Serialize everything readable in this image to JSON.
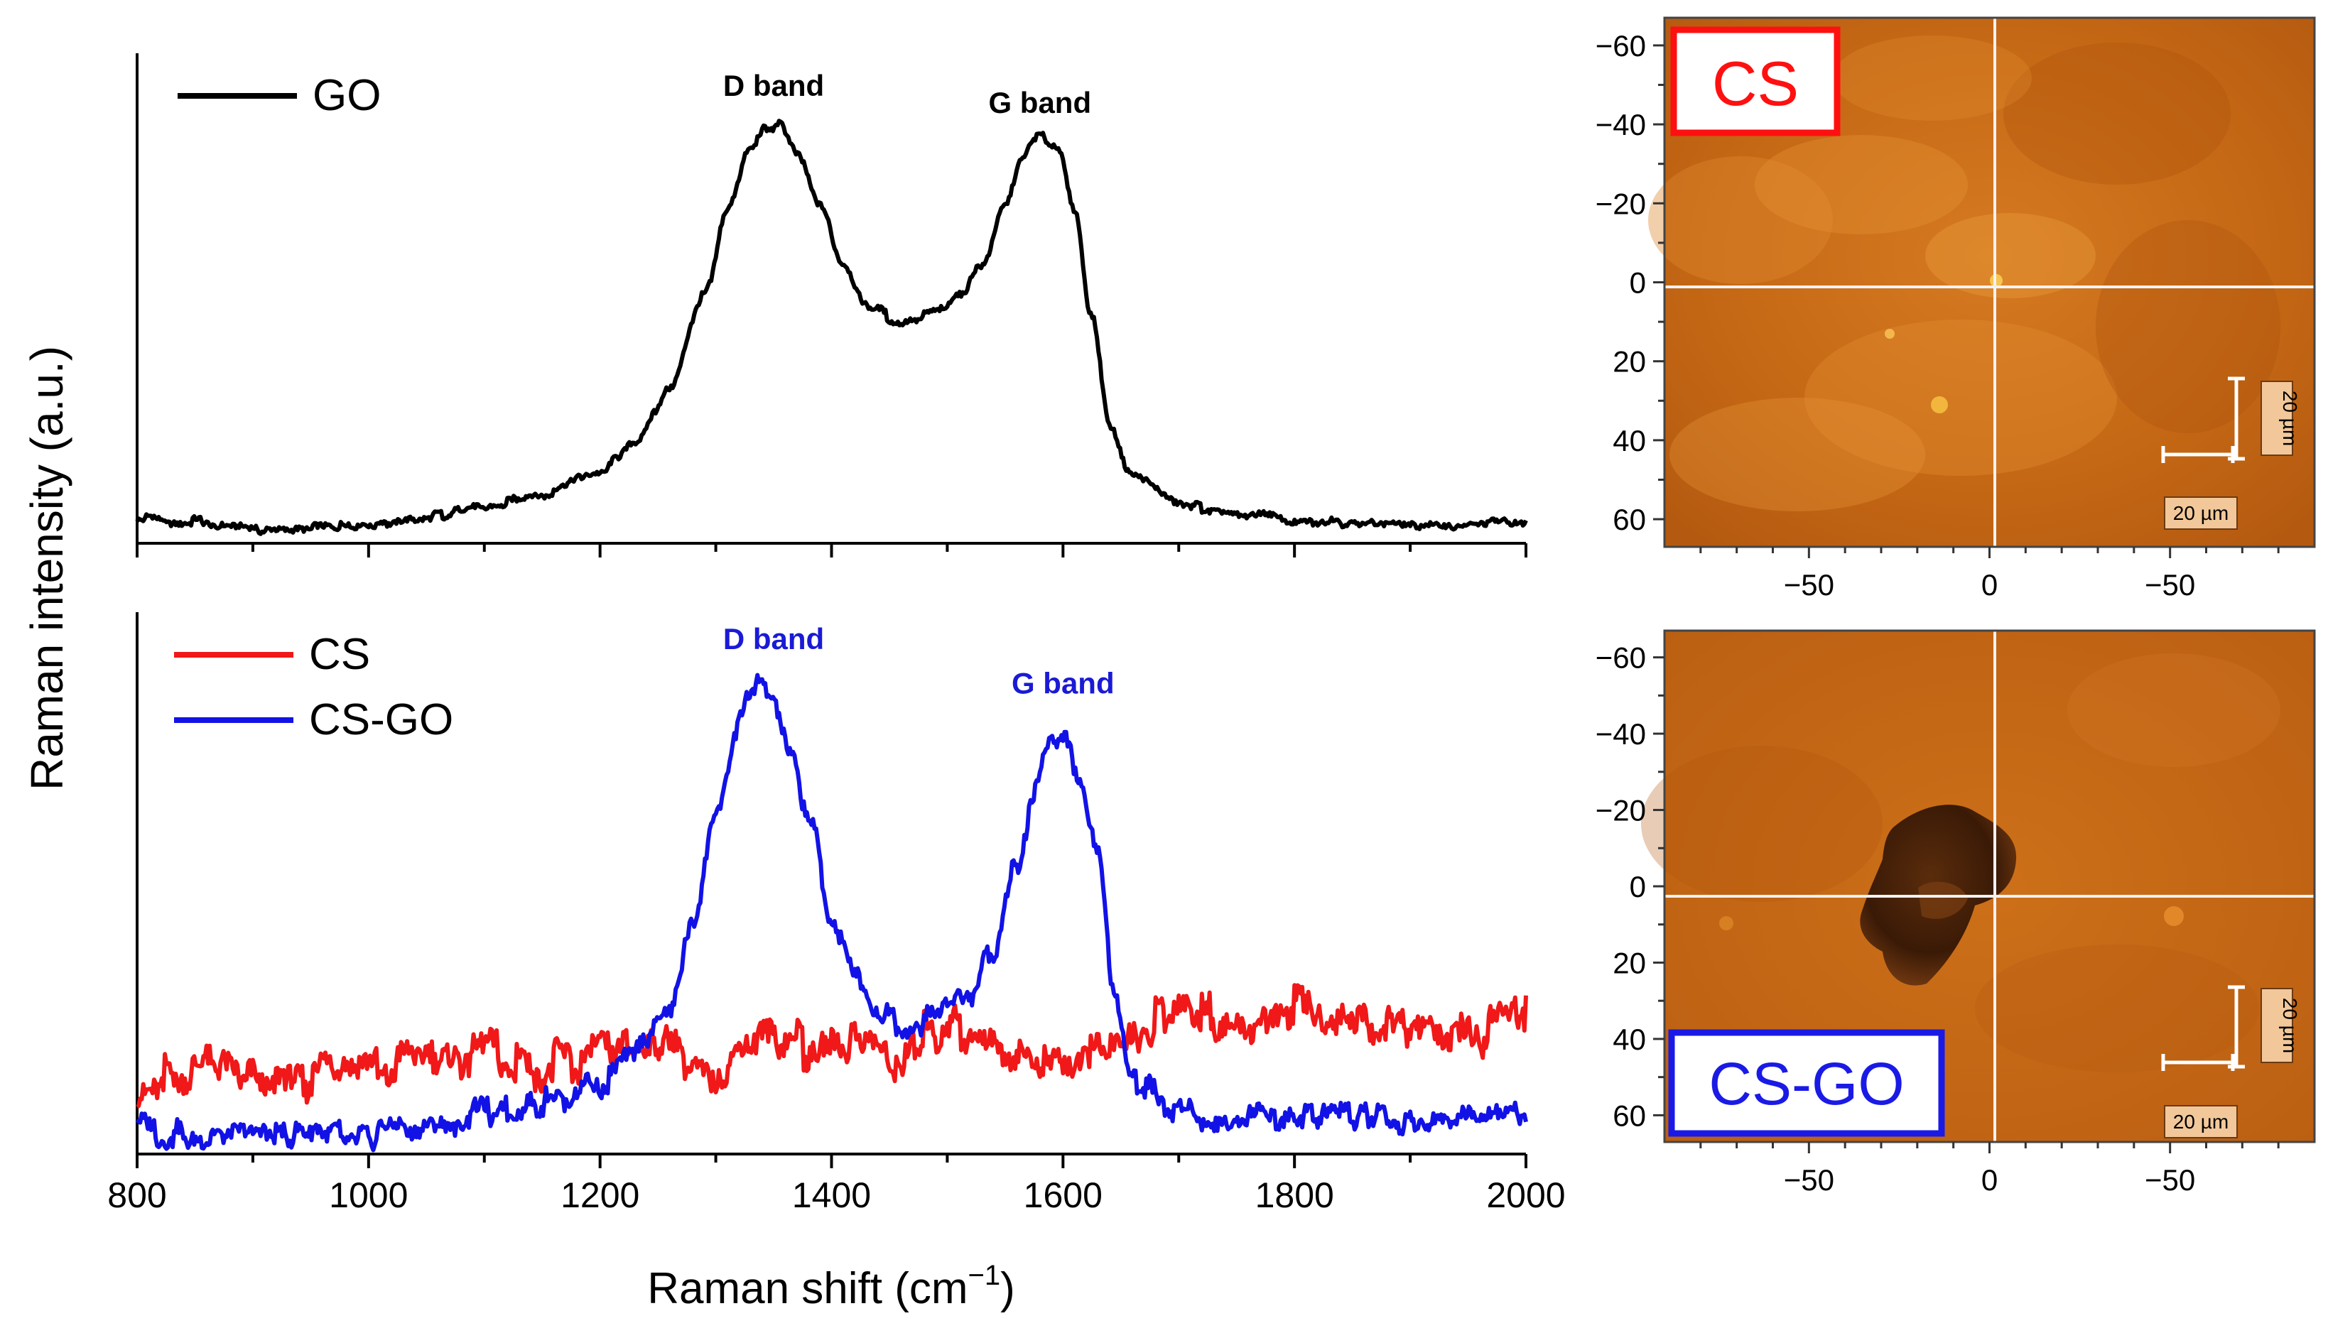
{
  "chart_data": [
    {
      "type": "line",
      "panel": "top",
      "xlim": [
        800,
        2000
      ],
      "ylim": [
        0,
        1
      ],
      "y_ticks_labeled": false,
      "legend": {
        "position": "top-left",
        "entries": [
          "GO"
        ]
      },
      "annotations": [
        {
          "text": "D band",
          "x": 1350,
          "y": 1.0,
          "color": "#000000"
        },
        {
          "text": "G band",
          "x": 1580,
          "y": 0.96,
          "color": "#000000"
        }
      ],
      "series": [
        {
          "name": "GO",
          "color": "#000000",
          "x": [
            800,
            850,
            900,
            950,
            1000,
            1050,
            1100,
            1150,
            1200,
            1230,
            1260,
            1290,
            1310,
            1330,
            1345,
            1355,
            1370,
            1390,
            1410,
            1430,
            1460,
            1490,
            1510,
            1530,
            1550,
            1565,
            1580,
            1595,
            1610,
            1625,
            1640,
            1660,
            1700,
            1750,
            1800,
            1850,
            1900,
            1950,
            2000
          ],
          "values": [
            0.06,
            0.05,
            0.035,
            0.035,
            0.04,
            0.06,
            0.085,
            0.115,
            0.17,
            0.24,
            0.36,
            0.58,
            0.78,
            0.93,
            0.975,
            0.98,
            0.92,
            0.79,
            0.66,
            0.56,
            0.52,
            0.54,
            0.58,
            0.65,
            0.8,
            0.91,
            0.96,
            0.93,
            0.78,
            0.53,
            0.28,
            0.16,
            0.09,
            0.07,
            0.055,
            0.05,
            0.04,
            0.045,
            0.05
          ]
        }
      ]
    },
    {
      "type": "line",
      "panel": "bottom",
      "xlim": [
        800,
        2000
      ],
      "ylim": [
        0,
        1
      ],
      "xlabel": "Raman shift (cm",
      "xlabel_sup": "−1",
      "xlabel_end": ")",
      "ylabel": "Raman intensity (a.u.)",
      "x_tick_labels": [
        "800",
        "1000",
        "1200",
        "1400",
        "1600",
        "1800",
        "2000"
      ],
      "legend": {
        "position": "top-left",
        "entries": [
          "CS",
          "CS-GO"
        ]
      },
      "annotations": [
        {
          "text": "D band",
          "x": 1350,
          "y": 0.98,
          "color": "#1a1ad6"
        },
        {
          "text": "G band",
          "x": 1600,
          "y": 0.89,
          "color": "#1a1ad6"
        }
      ],
      "series": [
        {
          "name": "CS",
          "color": "#f01818",
          "x": [
            800,
            850,
            900,
            950,
            1000,
            1050,
            1100,
            1150,
            1200,
            1250,
            1300,
            1350,
            1400,
            1450,
            1500,
            1550,
            1600,
            1650,
            1700,
            1750,
            1800,
            1850,
            1900,
            1950,
            2000
          ],
          "values": [
            0.15,
            0.17,
            0.14,
            0.16,
            0.17,
            0.18,
            0.2,
            0.18,
            0.2,
            0.23,
            0.18,
            0.22,
            0.23,
            0.19,
            0.26,
            0.22,
            0.17,
            0.23,
            0.3,
            0.27,
            0.29,
            0.28,
            0.26,
            0.25,
            0.27
          ]
        },
        {
          "name": "CS-GO",
          "color": "#1212e6",
          "x": [
            800,
            850,
            900,
            950,
            1000,
            1050,
            1100,
            1150,
            1200,
            1230,
            1260,
            1280,
            1300,
            1320,
            1335,
            1350,
            1365,
            1380,
            1400,
            1420,
            1440,
            1460,
            1480,
            1500,
            1520,
            1540,
            1560,
            1575,
            1590,
            1600,
            1615,
            1630,
            1645,
            1660,
            1700,
            1750,
            1800,
            1850,
            1900,
            1950,
            2000
          ],
          "values": [
            0.05,
            0.04,
            0.035,
            0.035,
            0.04,
            0.055,
            0.08,
            0.1,
            0.14,
            0.2,
            0.3,
            0.46,
            0.68,
            0.88,
            0.95,
            0.92,
            0.82,
            0.68,
            0.48,
            0.36,
            0.3,
            0.27,
            0.27,
            0.29,
            0.33,
            0.4,
            0.58,
            0.74,
            0.83,
            0.84,
            0.77,
            0.6,
            0.3,
            0.15,
            0.09,
            0.07,
            0.08,
            0.08,
            0.07,
            0.07,
            0.09
          ]
        }
      ]
    }
  ],
  "micrographs": [
    {
      "label": "CS",
      "label_color": "#ff1010",
      "y_tick_labels": [
        "−60",
        "−40",
        "−20",
        "0",
        "20",
        "40",
        "60"
      ],
      "x_tick_labels": [
        "−50",
        "0",
        "−50"
      ],
      "scale_bar_h": "20 µm",
      "scale_bar_v": "20 µm"
    },
    {
      "label": "CS-GO",
      "label_color": "#1a1ae6",
      "y_tick_labels": [
        "−60",
        "−40",
        "−20",
        "0",
        "20",
        "40",
        "60"
      ],
      "x_tick_labels": [
        "−50",
        "0",
        "−50"
      ],
      "scale_bar_h": "20 µm",
      "scale_bar_v": "20 µm"
    }
  ],
  "colors": {
    "axis": "#000000",
    "micro_base": "#c76a18",
    "micro_base_dark": "#b45b10",
    "cross": "#f2f2f2",
    "scale_box": "#f2c89a"
  }
}
